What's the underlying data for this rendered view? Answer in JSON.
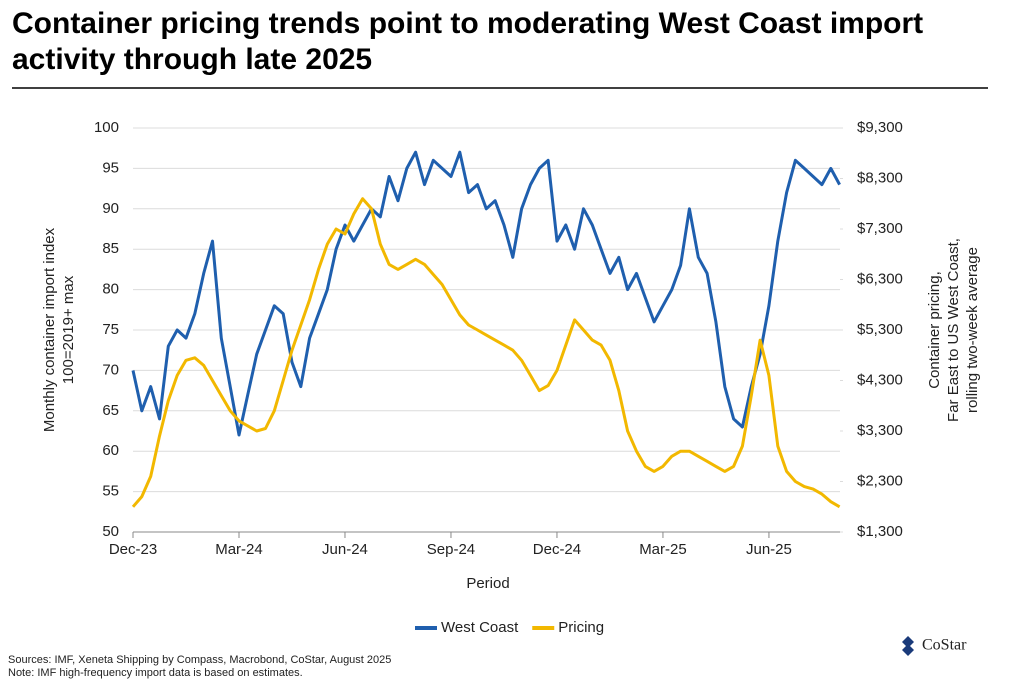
{
  "chart_data": {
    "type": "line",
    "title": "Container pricing trends point to moderating West Coast import activity through late 2025",
    "x_label": "Period",
    "y_label": [
      "Monthly container import index",
      "100=2019+ max"
    ],
    "y2_label": [
      "Container pricing,",
      "Far East to US West Coast,",
      "rolling two-week average"
    ],
    "categories": [
      "Dec-23",
      null,
      null,
      null,
      null,
      null,
      null,
      null,
      null,
      null,
      null,
      null,
      "Mar-24",
      null,
      null,
      null,
      null,
      null,
      null,
      null,
      null,
      null,
      null,
      null,
      "Jun-24",
      null,
      null,
      null,
      null,
      null,
      null,
      null,
      null,
      null,
      null,
      null,
      "Sep-24",
      null,
      null,
      null,
      null,
      null,
      null,
      null,
      null,
      null,
      null,
      null,
      "Dec-24",
      null,
      null,
      null,
      null,
      null,
      null,
      null,
      null,
      null,
      null,
      null,
      "Mar-25",
      null,
      null,
      null,
      null,
      null,
      null,
      null,
      null,
      null,
      null,
      null,
      "Jun-25",
      null,
      null,
      null,
      null,
      null,
      null,
      null,
      null
    ],
    "ylim": [
      50,
      100
    ],
    "yticks": [
      50,
      55,
      60,
      65,
      70,
      75,
      80,
      85,
      90,
      95,
      100
    ],
    "y2lim": [
      1300,
      9300
    ],
    "y2ticks": [
      {
        "value": 1300,
        "label": "$1,300"
      },
      {
        "value": 2300,
        "label": "$2,300"
      },
      {
        "value": 3300,
        "label": "$3,300"
      },
      {
        "value": 4300,
        "label": "$4,300"
      },
      {
        "value": 5300,
        "label": "$5,300"
      },
      {
        "value": 6300,
        "label": "$6,300"
      },
      {
        "value": 7300,
        "label": "$7,300"
      },
      {
        "value": 8300,
        "label": "$8,300"
      },
      {
        "value": 9300,
        "label": "$9,300"
      }
    ],
    "grid": true,
    "legend": "bottom",
    "series": [
      {
        "name": "West Coast",
        "color": "#1f5fae",
        "axis": "y",
        "values": [
          70,
          65,
          68,
          64,
          73,
          75,
          74,
          77,
          82,
          86,
          74,
          68,
          62,
          67,
          72,
          75,
          78,
          77,
          71,
          68,
          74,
          77,
          80,
          85,
          88,
          86,
          88,
          90,
          89,
          94,
          91,
          95,
          97,
          93,
          96,
          95,
          94,
          97,
          92,
          93,
          90,
          91,
          88,
          84,
          90,
          93,
          95,
          96,
          86,
          88,
          85,
          90,
          88,
          85,
          82,
          84,
          80,
          82,
          79,
          76,
          78,
          80,
          83,
          90,
          84,
          82,
          76,
          68,
          64,
          63,
          68,
          72,
          78,
          86,
          92,
          96,
          95,
          94,
          93,
          95,
          93
        ]
      },
      {
        "name": "Pricing",
        "color": "#f2b800",
        "axis": "y2",
        "values": [
          1800,
          2000,
          2400,
          3200,
          3900,
          4400,
          4700,
          4750,
          4600,
          4300,
          4000,
          3700,
          3500,
          3400,
          3300,
          3350,
          3700,
          4300,
          4900,
          5400,
          5900,
          6500,
          7000,
          7300,
          7200,
          7600,
          7900,
          7700,
          7000,
          6600,
          6500,
          6600,
          6700,
          6600,
          6400,
          6200,
          5900,
          5600,
          5400,
          5300,
          5200,
          5100,
          5000,
          4900,
          4700,
          4400,
          4100,
          4200,
          4500,
          5000,
          5500,
          5300,
          5100,
          5000,
          4700,
          4100,
          3300,
          2900,
          2600,
          2500,
          2600,
          2800,
          2900,
          2900,
          2800,
          2700,
          2600,
          2500,
          2600,
          3000,
          4000,
          5100,
          4400,
          3000,
          2500,
          2300,
          2200,
          2150,
          2050,
          1900,
          1800
        ]
      }
    ],
    "source": "Sources: IMF, Xeneta Shipping by Compass, Macrobond, CoStar, August 2025",
    "note": "Note: IMF high-frequency import data is based on estimates.",
    "logo": "CoStar"
  }
}
